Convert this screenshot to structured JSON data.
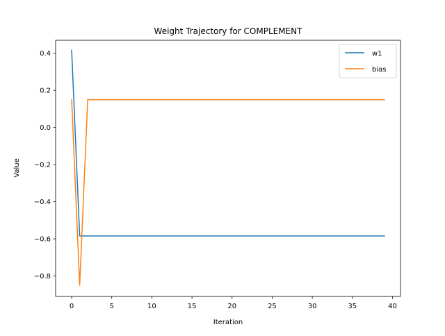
{
  "chart_data": {
    "type": "line",
    "title": "Weight Trajectory for COMPLEMENT",
    "xlabel": "Iteration",
    "ylabel": "Value",
    "xlim": [
      -2,
      41
    ],
    "ylim": [
      -0.91,
      0.47
    ],
    "xticks": [
      0,
      5,
      10,
      15,
      20,
      25,
      30,
      35,
      40
    ],
    "xtick_labels": [
      "0",
      "5",
      "10",
      "15",
      "20",
      "25",
      "30",
      "35",
      "40"
    ],
    "yticks": [
      0.4,
      0.2,
      0.0,
      -0.2,
      -0.4,
      -0.6,
      -0.8
    ],
    "ytick_labels": [
      "0.4",
      "0.2",
      "0.0",
      "−0.2",
      "−0.4",
      "−0.6",
      "−0.8"
    ],
    "grid": false,
    "legend_position": "top-right",
    "x": [
      0,
      1,
      2,
      3,
      4,
      5,
      6,
      7,
      8,
      9,
      10,
      11,
      12,
      13,
      14,
      15,
      16,
      17,
      18,
      19,
      20,
      21,
      22,
      23,
      24,
      25,
      26,
      27,
      28,
      29,
      30,
      31,
      32,
      33,
      34,
      35,
      36,
      37,
      38,
      39
    ],
    "series": [
      {
        "name": "w1",
        "color": "#1f77b4",
        "values": [
          0.416,
          -0.584,
          -0.584,
          -0.584,
          -0.584,
          -0.584,
          -0.584,
          -0.584,
          -0.584,
          -0.584,
          -0.584,
          -0.584,
          -0.584,
          -0.584,
          -0.584,
          -0.584,
          -0.584,
          -0.584,
          -0.584,
          -0.584,
          -0.584,
          -0.584,
          -0.584,
          -0.584,
          -0.584,
          -0.584,
          -0.584,
          -0.584,
          -0.584,
          -0.584,
          -0.584,
          -0.584,
          -0.584,
          -0.584,
          -0.584,
          -0.584,
          -0.584,
          -0.584,
          -0.584,
          -0.584
        ]
      },
      {
        "name": "bias",
        "color": "#ff7f0e",
        "values": [
          0.15,
          -0.85,
          0.15,
          0.15,
          0.15,
          0.15,
          0.15,
          0.15,
          0.15,
          0.15,
          0.15,
          0.15,
          0.15,
          0.15,
          0.15,
          0.15,
          0.15,
          0.15,
          0.15,
          0.15,
          0.15,
          0.15,
          0.15,
          0.15,
          0.15,
          0.15,
          0.15,
          0.15,
          0.15,
          0.15,
          0.15,
          0.15,
          0.15,
          0.15,
          0.15,
          0.15,
          0.15,
          0.15,
          0.15,
          0.15
        ]
      }
    ]
  }
}
